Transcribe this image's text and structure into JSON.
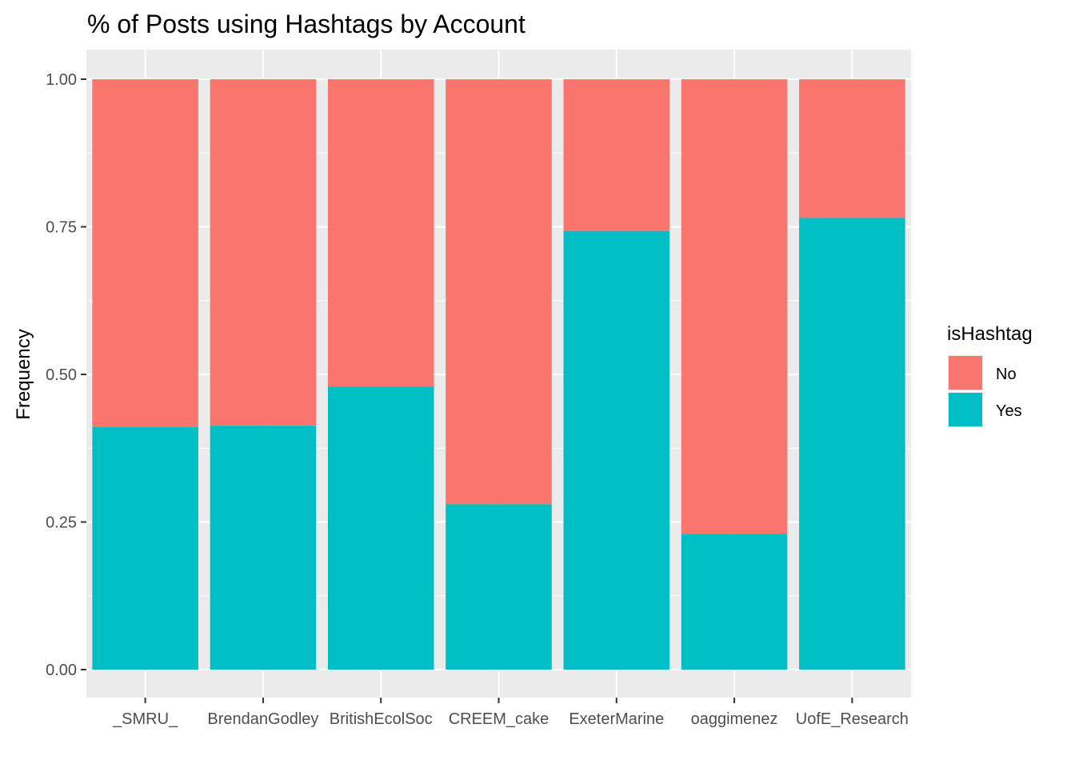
{
  "chart_data": {
    "type": "bar",
    "stacked": true,
    "title": "% of Posts using Hashtags by Account",
    "xlabel": "",
    "ylabel": "Frequency",
    "ylim": [
      0,
      1
    ],
    "yticks": [
      "0.00",
      "0.25",
      "0.50",
      "0.75",
      "1.00"
    ],
    "ytick_values": [
      0,
      0.25,
      0.5,
      0.75,
      1
    ],
    "categories": [
      "_SMRU_",
      "BrendanGodley",
      "BritishEcolSoc",
      "CREEM_cake",
      "ExeterMarine",
      "oaggimenez",
      "UofE_Research"
    ],
    "legend": {
      "title": "isHashtag",
      "position": "right"
    },
    "series": [
      {
        "name": "No",
        "color": "#F8766D",
        "values": [
          0.589,
          0.587,
          0.521,
          0.72,
          0.257,
          0.77,
          0.235
        ]
      },
      {
        "name": "Yes",
        "color": "#00BFC4",
        "values": [
          0.411,
          0.413,
          0.479,
          0.28,
          0.743,
          0.23,
          0.765
        ]
      }
    ],
    "grid": true,
    "panel_background": "#EBEBEB",
    "gridline_color": "#FFFFFF"
  }
}
